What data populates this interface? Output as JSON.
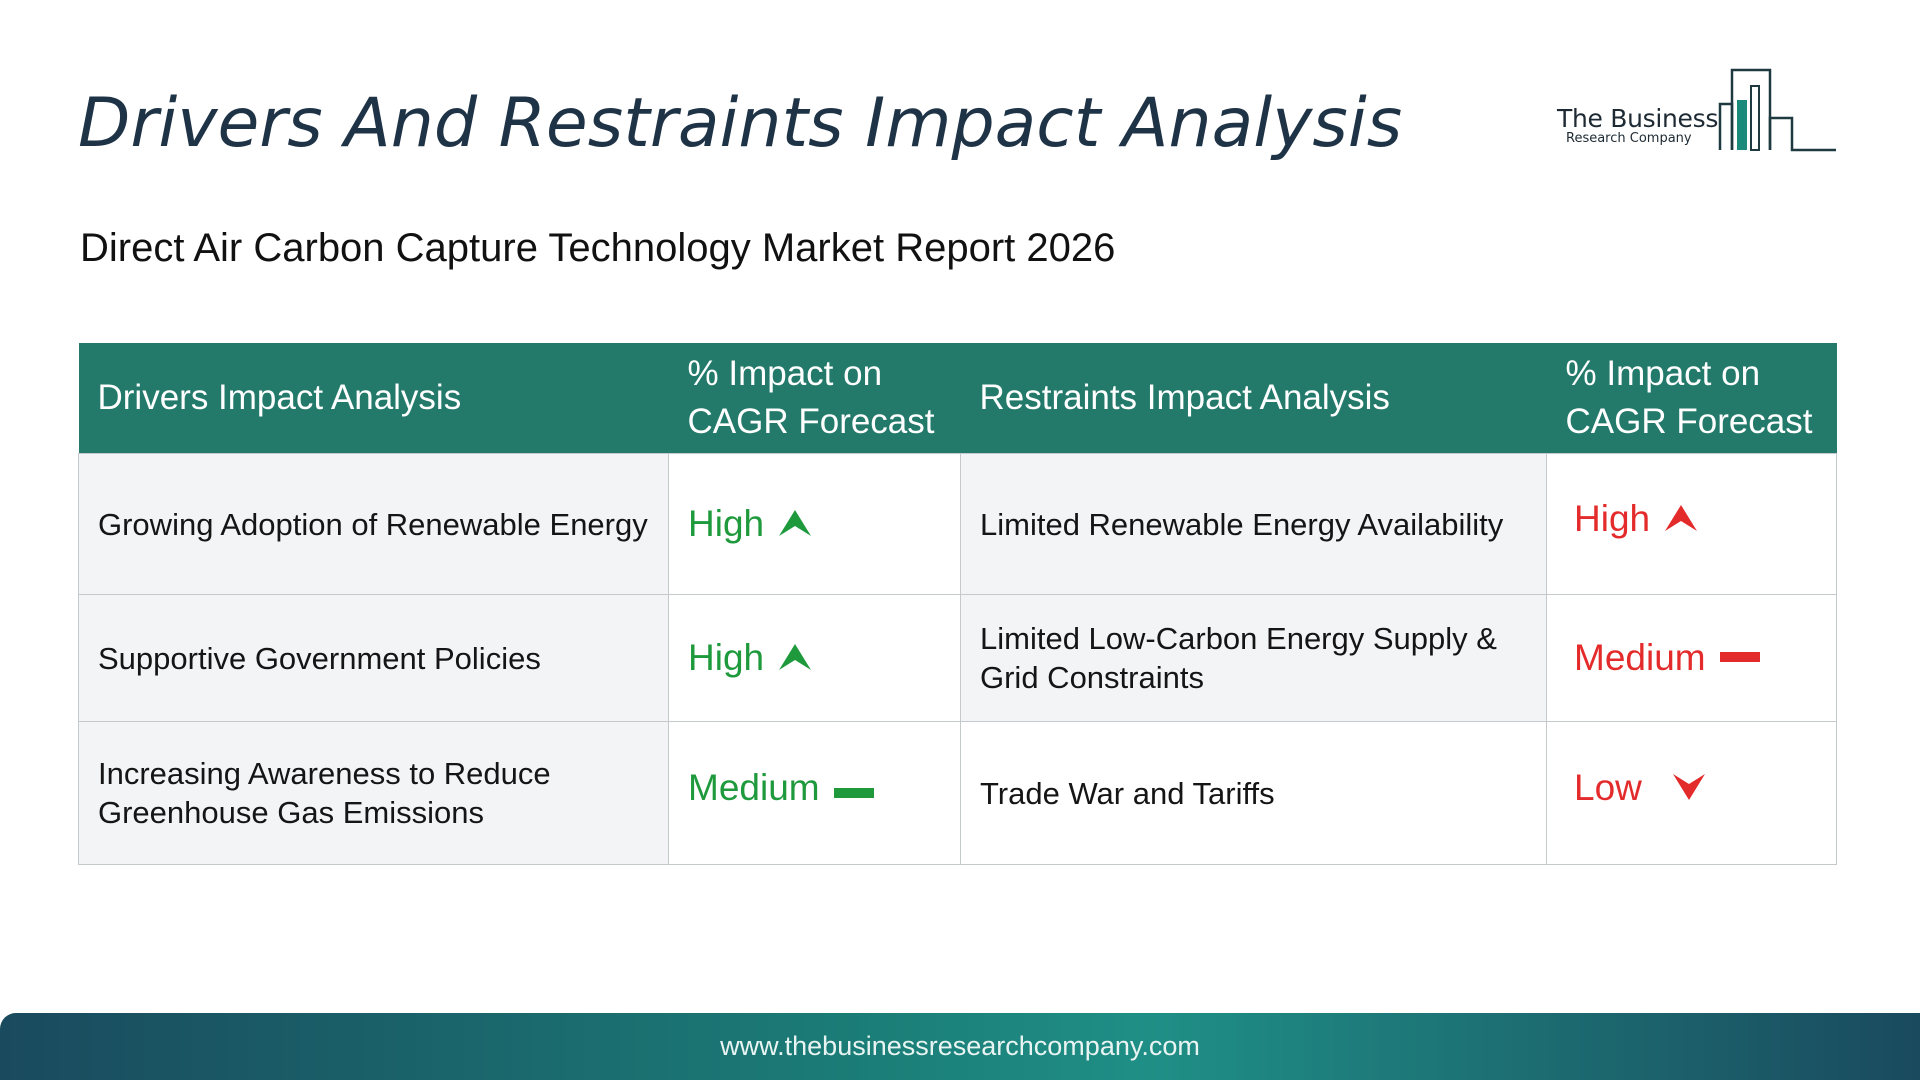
{
  "header": {
    "title": "Drivers And Restraints Impact Analysis",
    "subtitle": "Direct Air Carbon Capture Technology Market Report 2026"
  },
  "logo": {
    "line1": "The Business",
    "line2": "Research Company",
    "icon": "bar-building-icon",
    "color": "#1b8a7a"
  },
  "table": {
    "headers": {
      "drivers": "Drivers Impact Analysis",
      "drivers_impact": "% Impact on CAGR Forecast",
      "restraints": "Restraints Impact Analysis",
      "restraints_impact": "% Impact on CAGR Forecast"
    },
    "rows": [
      {
        "driver": "Growing Adoption of Renewable Energy",
        "driver_impact": "High",
        "driver_icon": "arrow-up-icon",
        "restraint": "Limited Renewable Energy Availability",
        "restraint_impact": "High",
        "restraint_icon": "arrow-up-icon"
      },
      {
        "driver": "Supportive Government Policies",
        "driver_impact": "High",
        "driver_icon": "arrow-up-icon",
        "restraint": "Limited Low-Carbon Energy Supply & Grid Constraints",
        "restraint_impact": "Medium",
        "restraint_icon": "dash-icon"
      },
      {
        "driver": "Increasing Awareness to Reduce Greenhouse Gas Emissions",
        "driver_impact": "Medium",
        "driver_icon": "dash-icon",
        "restraint": "Trade War and Tariffs",
        "restraint_impact": "Low",
        "restraint_icon": "arrow-down-icon"
      }
    ]
  },
  "colors": {
    "header_bg": "#237a6b",
    "driver_level": "#1e9a3c",
    "restraint_level": "#e42b2b",
    "title": "#1f3347"
  },
  "footer": {
    "url": "www.thebusinessresearchcompany.com"
  }
}
